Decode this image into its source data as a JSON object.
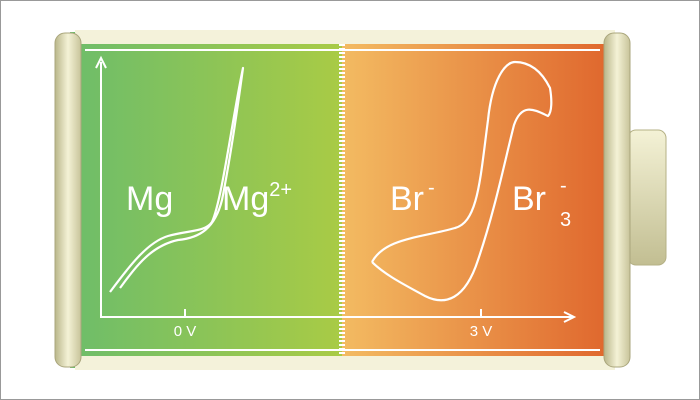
{
  "left_half": {
    "reduced": "Mg",
    "oxidized": "Mg",
    "oxidized_charge": "2+"
  },
  "right_half": {
    "reduced": "Br",
    "reduced_charge": "-",
    "oxidized": "Br",
    "oxidized_subscript": "3",
    "oxidized_charge": "-"
  },
  "axis": {
    "ticks": [
      "0 V",
      "3 V"
    ]
  }
}
